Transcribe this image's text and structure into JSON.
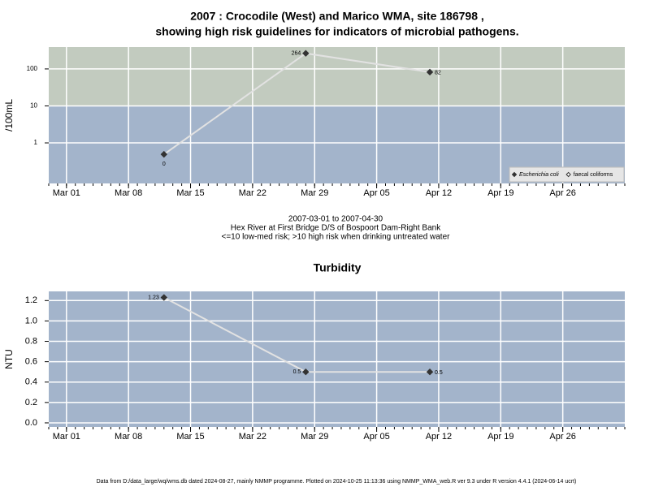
{
  "chart_data": [
    {
      "type": "line",
      "title": [
        "2007 : Crocodile (West) and Marico WMA, site 186798 ,",
        "showing high risk guidelines for indicators of microbial pathogens."
      ],
      "ylabel": "/100mL",
      "log_y": true,
      "x": [
        "2007-03-12",
        "2007-03-28",
        "2007-04-11"
      ],
      "series": [
        {
          "name": "Escherichia coli",
          "font_style": "italic",
          "color": "#333333",
          "marker": "filled-diamond",
          "values": [
            0.49,
            264,
            82
          ],
          "value_labels": [
            "0",
            "264",
            "82"
          ]
        },
        {
          "name": "faecal coliforms",
          "font_style": "normal",
          "color": "#333333",
          "marker": "open-diamond",
          "values": [
            null,
            null,
            null
          ]
        }
      ],
      "line_color": "#e2e2e2",
      "xlim": [
        "2007-02-27",
        "2007-05-03"
      ],
      "xticks": [
        {
          "value": "2007-03-01",
          "label": "Mar 01"
        },
        {
          "value": "2007-03-08",
          "label": "Mar 08"
        },
        {
          "value": "2007-03-15",
          "label": "Mar 15"
        },
        {
          "value": "2007-03-22",
          "label": "Mar 22"
        },
        {
          "value": "2007-03-29",
          "label": "Mar 29"
        },
        {
          "value": "2007-04-05",
          "label": "Apr 05"
        },
        {
          "value": "2007-04-12",
          "label": "Apr 12"
        },
        {
          "value": "2007-04-19",
          "label": "Apr 19"
        },
        {
          "value": "2007-04-26",
          "label": "Apr 26"
        }
      ],
      "ylim": [
        0.08,
        390
      ],
      "yticks": [
        1,
        10,
        100
      ],
      "grid": true,
      "background": "#a3b4cb",
      "bands": [
        {
          "from": 10,
          "color": "#c2cbbf"
        }
      ],
      "legend": "lower right",
      "notes": [
        "2007-03-01 to 2007-04-30",
        "Hex River at First Bridge D/S of Bospoort Dam-Right Bank",
        "<=10 low-med risk; >10 high risk when drinking untreated water"
      ]
    },
    {
      "type": "line",
      "title": [
        "Turbidity"
      ],
      "ylabel": "NTU",
      "log_y": false,
      "x": [
        "2007-03-12",
        "2007-03-28",
        "2007-04-11"
      ],
      "series": [
        {
          "name": "Turbidity",
          "color": "#333333",
          "marker": "filled-diamond",
          "values": [
            1.23,
            0.5,
            0.5
          ]
        }
      ],
      "line_color": "#e2e2e2",
      "xlim": [
        "2007-02-27",
        "2007-05-03"
      ],
      "xticks": [
        {
          "value": "2007-03-01",
          "label": "Mar 01"
        },
        {
          "value": "2007-03-08",
          "label": "Mar 08"
        },
        {
          "value": "2007-03-15",
          "label": "Mar 15"
        },
        {
          "value": "2007-03-22",
          "label": "Mar 22"
        },
        {
          "value": "2007-03-29",
          "label": "Mar 29"
        },
        {
          "value": "2007-04-05",
          "label": "Apr 05"
        },
        {
          "value": "2007-04-12",
          "label": "Apr 12"
        },
        {
          "value": "2007-04-19",
          "label": "Apr 19"
        },
        {
          "value": "2007-04-26",
          "label": "Apr 26"
        }
      ],
      "ylim": [
        -0.04,
        1.29
      ],
      "yticks": [
        {
          "value": 0,
          "label": "0.0"
        },
        0.2,
        0.4,
        0.6,
        0.8,
        {
          "value": 1,
          "label": "1.0"
        },
        1.2
      ],
      "grid": true,
      "background": "#a3b4cb",
      "bands": [],
      "caption": "Data from D:/data_large/wq/wms.db dated 2024-08-27, mainly NMMP programme. Plotted on 2024-10-25 11:13:36 using NMMP_WMA_web.R ver 9.3 under R version 4.4.1 (2024-06-14 ucrt)"
    }
  ]
}
